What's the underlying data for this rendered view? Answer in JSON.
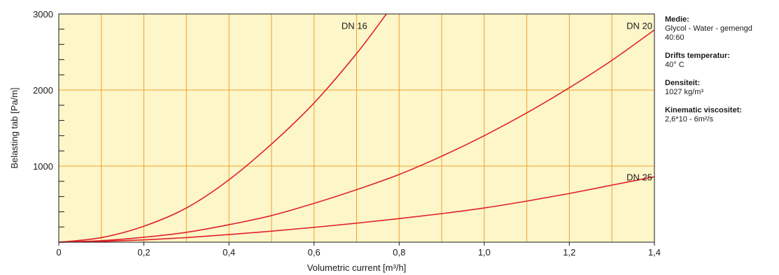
{
  "chart_data": {
    "type": "line",
    "xlabel": "Volumetric current [m³/h]",
    "ylabel": "Belasting tab [Pa/m]",
    "xlim": [
      0,
      1.4
    ],
    "ylim": [
      0,
      3000
    ],
    "x_ticks": [
      0,
      0.2,
      0.4,
      0.6,
      0.8,
      1.0,
      1.2,
      1.4
    ],
    "x_tick_labels": [
      "0",
      "0,2",
      "0,4",
      "0,6",
      "0,8",
      "1,0",
      "1,2",
      "1,4"
    ],
    "y_ticks": [
      1000,
      2000,
      3000
    ],
    "y_tick_labels": [
      "1000",
      "2000",
      "3000"
    ],
    "x_gridlines": [
      0.1,
      0.2,
      0.3,
      0.4,
      0.5,
      0.6,
      0.7,
      0.8,
      0.9,
      1.0,
      1.1,
      1.2,
      1.3
    ],
    "y_gridlines": [
      1000,
      2000
    ],
    "grid": true,
    "background_color": "#fdf6c8",
    "grid_color": "#f0a030",
    "line_color": "#e0202a",
    "series": [
      {
        "name": "DN 16",
        "x": [
          0,
          0.1,
          0.2,
          0.3,
          0.4,
          0.5,
          0.6,
          0.7,
          0.77
        ],
        "y": [
          0,
          60,
          210,
          450,
          820,
          1290,
          1830,
          2480,
          3000
        ]
      },
      {
        "name": "DN 20",
        "x": [
          0,
          0.1,
          0.2,
          0.3,
          0.4,
          0.5,
          0.6,
          0.7,
          0.8,
          0.9,
          1.0,
          1.1,
          1.2,
          1.3,
          1.4
        ],
        "y": [
          0,
          20,
          65,
          130,
          230,
          350,
          510,
          690,
          890,
          1130,
          1400,
          1700,
          2030,
          2390,
          2790
        ]
      },
      {
        "name": "DN 25",
        "x": [
          0,
          0.1,
          0.2,
          0.3,
          0.4,
          0.5,
          0.6,
          0.7,
          0.8,
          0.9,
          1.0,
          1.1,
          1.2,
          1.3,
          1.4
        ],
        "y": [
          0,
          10,
          30,
          60,
          100,
          145,
          195,
          250,
          310,
          375,
          450,
          540,
          640,
          750,
          860
        ]
      }
    ]
  },
  "info": [
    {
      "label": "Medie:",
      "value": "Glycol - Water - gemengd\n40:60"
    },
    {
      "label": "Drifts temperatur:",
      "value": "40° C"
    },
    {
      "label": "Densiteit:",
      "value": "1027 kg/m³"
    },
    {
      "label": "Kinematic viscositet:",
      "value": "2,6*10 - 6m²/s"
    }
  ]
}
